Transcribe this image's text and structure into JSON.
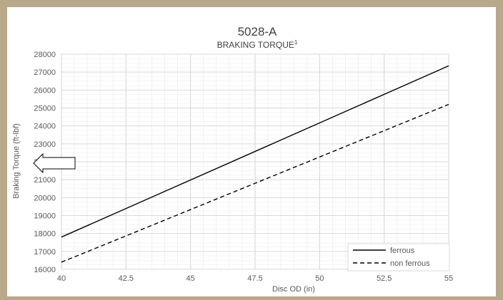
{
  "chart_data": {
    "type": "line",
    "title": "5028-A",
    "subtitle": "BRAKING TORQUE",
    "subtitle_superscript": "1",
    "xlabel": "Disc OD (in)",
    "ylabel": "Braking Torque (ft-lbf)",
    "xlim": [
      40,
      55
    ],
    "ylim": [
      16000,
      28000
    ],
    "x_ticks": [
      40,
      42.5,
      45,
      47.5,
      50,
      52.5,
      55
    ],
    "x_tick_labels": [
      "40",
      "42.5",
      "45",
      "47.5",
      "50",
      "52.5",
      "55"
    ],
    "y_ticks": [
      16000,
      17000,
      18000,
      19000,
      20000,
      21000,
      22000,
      23000,
      24000,
      25000,
      26000,
      27000,
      28000
    ],
    "y_tick_labels": [
      "16000",
      "17000",
      "18000",
      "19000",
      "20000",
      "21000",
      "22000",
      "23000",
      "24000",
      "25000",
      "26000",
      "27000",
      "28000"
    ],
    "grid": true,
    "legend_position": "bottom-right",
    "series": [
      {
        "name": "ferrous",
        "style": "solid",
        "color": "#000000",
        "x": [
          40,
          55
        ],
        "y": [
          17800,
          27350
        ]
      },
      {
        "name": "non ferrous",
        "style": "dashed",
        "color": "#000000",
        "x": [
          40,
          55
        ],
        "y": [
          16400,
          25200
        ]
      }
    ]
  },
  "annotation": {
    "shape": "left-arrow",
    "color": "#000000"
  },
  "colors": {
    "background": "#b8a98a",
    "plot_bg": "#ffffff",
    "grid_major": "#d9d9d9",
    "grid_minor": "#efefef"
  }
}
